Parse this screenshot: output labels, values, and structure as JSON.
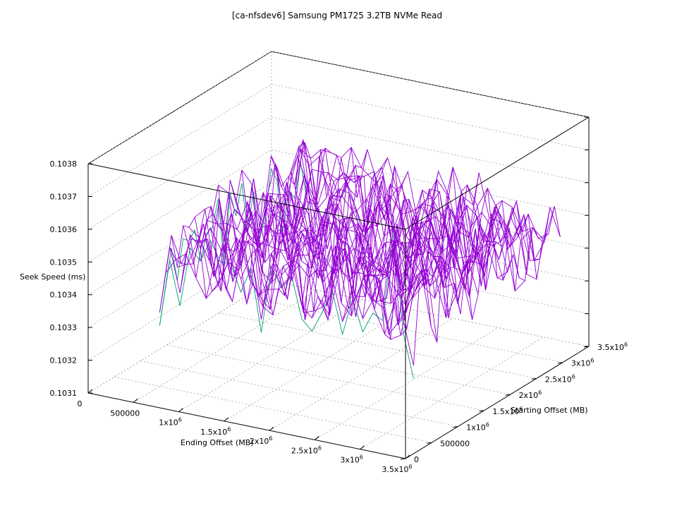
{
  "chart_data": {
    "type": "surface",
    "title": "[ca-nfsdev6] Samsung PM1725 3.2TB NVMe Read",
    "xlabel": "Ending Offset (MB)",
    "ylabel": "Starting Offset (MB)",
    "zlabel": "Seek Speed (ms)",
    "xlim": [
      0,
      3500000
    ],
    "ylim": [
      0,
      3500000
    ],
    "zlim": [
      0.1031,
      0.1038
    ],
    "x_ticks": [
      {
        "value": 0,
        "label": "0",
        "exp": ""
      },
      {
        "value": 500000,
        "label": "500000",
        "exp": ""
      },
      {
        "value": 1000000,
        "label": "1x10",
        "exp": "6"
      },
      {
        "value": 1500000,
        "label": "1.5x10",
        "exp": "6"
      },
      {
        "value": 2000000,
        "label": "2x10",
        "exp": "6"
      },
      {
        "value": 2500000,
        "label": "2.5x10",
        "exp": "6"
      },
      {
        "value": 3000000,
        "label": "3x10",
        "exp": "6"
      },
      {
        "value": 3500000,
        "label": "3.5x10",
        "exp": "6"
      }
    ],
    "y_ticks": [
      {
        "value": 0,
        "label": "0",
        "exp": ""
      },
      {
        "value": 500000,
        "label": "500000",
        "exp": ""
      },
      {
        "value": 1000000,
        "label": "1x10",
        "exp": "6"
      },
      {
        "value": 1500000,
        "label": "1.5x10",
        "exp": "6"
      },
      {
        "value": 2000000,
        "label": "2x10",
        "exp": "6"
      },
      {
        "value": 2500000,
        "label": "2.5x10",
        "exp": "6"
      },
      {
        "value": 3000000,
        "label": "3x10",
        "exp": "6"
      },
      {
        "value": 3500000,
        "label": "3.5x10",
        "exp": "6"
      }
    ],
    "z_ticks": [
      "0.1031",
      "0.1032",
      "0.1033",
      "0.1034",
      "0.1035",
      "0.1036",
      "0.1037",
      "0.1038"
    ],
    "grid": true,
    "surface": {
      "grid_size": 26,
      "range": [
        500000,
        3300000
      ],
      "base_value": 0.10348,
      "noise_amplitude": 0.00016,
      "spike": {
        "x": 3100000,
        "y": 500000,
        "value": 0.10377
      },
      "dip": {
        "x": 1350000,
        "y": 3000000,
        "value": 0.10326
      },
      "colors": {
        "top": "#9400d3",
        "bottom": "#009e73"
      }
    }
  }
}
